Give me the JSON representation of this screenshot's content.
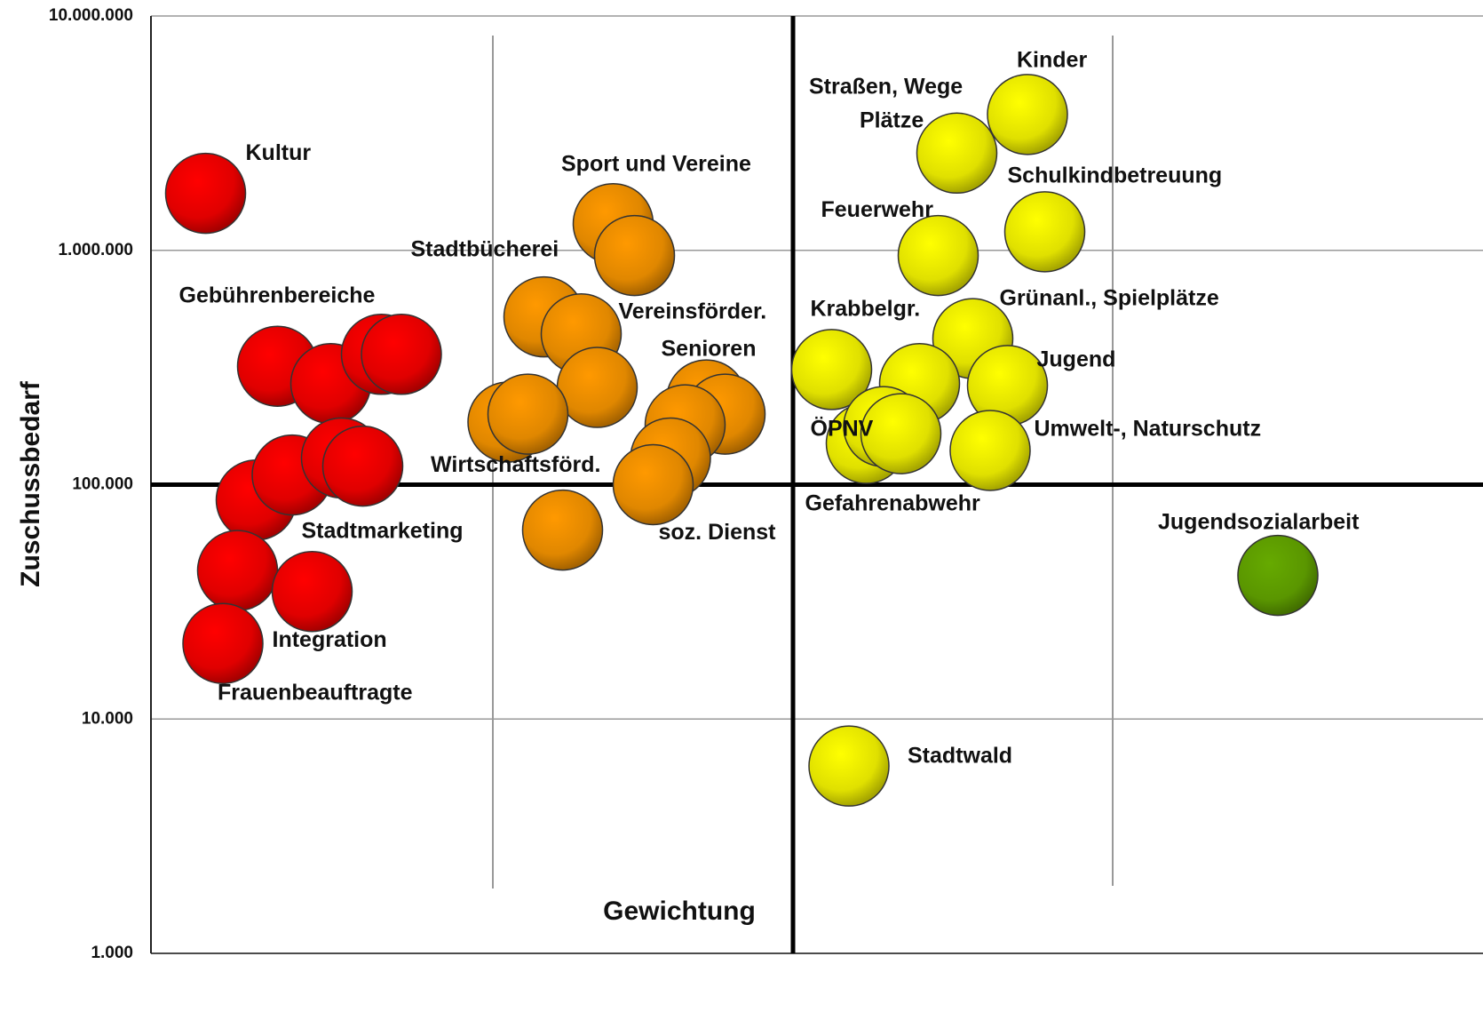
{
  "chart_data": {
    "type": "bubble",
    "x_label": "Gewichtung",
    "y_label": "Zuschussbedarf",
    "log_y": true,
    "grid": true,
    "xlim": [
      0,
      100
    ],
    "ylim": [
      1000,
      10000000
    ],
    "yticks": [
      {
        "value": 1000,
        "label": "1.000"
      },
      {
        "value": 10000,
        "label": "10.000"
      },
      {
        "value": 100000,
        "label": "100.000"
      },
      {
        "value": 1000000,
        "label": "1.000.000"
      },
      {
        "value": 10000000,
        "label": "10.000.000"
      }
    ],
    "crosshair": {
      "x": 48.2,
      "y": 100000
    },
    "series": [
      {
        "color": "#ff0000",
        "x": [
          4.1,
          9.5,
          13.5,
          17.3,
          18.8,
          7.9,
          10.6,
          14.3,
          15.9,
          6.5,
          12.1,
          5.4
        ],
        "values": [
          1750000,
          320000,
          270000,
          360000,
          360000,
          86000,
          110000,
          130000,
          120000,
          43000,
          35000,
          21000
        ]
      },
      {
        "color": "#ff9900",
        "x": [
          34.7,
          36.3,
          29.5,
          32.3,
          33.5,
          26.8,
          28.3,
          30.9,
          41.7,
          43.1,
          40.1,
          39.0,
          37.7
        ],
        "values": [
          1300000,
          950000,
          520000,
          440000,
          260000,
          185000,
          200000,
          64000,
          230000,
          200000,
          180000,
          130000,
          100000
        ]
      },
      {
        "color": "#ffff00",
        "x": [
          65.8,
          60.5,
          67.1,
          59.1,
          61.7,
          51.1,
          57.7,
          64.3,
          53.7,
          55.0,
          56.3,
          63.0,
          52.4
        ],
        "values": [
          3800000,
          2600000,
          1200000,
          950000,
          420000,
          310000,
          270000,
          265000,
          150000,
          177000,
          165000,
          140000,
          6300
        ]
      },
      {
        "color": "#66aa00",
        "x": [
          84.6
        ],
        "values": [
          41000
        ]
      }
    ],
    "annotations": [
      {
        "text": "Kultur",
        "x": 7.1,
        "y": 2580000
      },
      {
        "text": "Sport und Vereine",
        "x": 30.8,
        "y": 2310000
      },
      {
        "text": "Stadtbücherei",
        "x": 19.5,
        "y": 1000000
      },
      {
        "text": "Gebührenbereiche",
        "x": 2.1,
        "y": 634000
      },
      {
        "text": "Vereinsförder.",
        "x": 35.1,
        "y": 542000
      },
      {
        "text": "Senioren",
        "x": 38.3,
        "y": 375000
      },
      {
        "text": "Wirtschaftsförd.",
        "x": 21.0,
        "y": 120000
      },
      {
        "text": "Stadtmarketing",
        "x": 11.3,
        "y": 62700
      },
      {
        "text": "soz. Dienst",
        "x": 38.1,
        "y": 62000
      },
      {
        "text": "Integration",
        "x": 9.1,
        "y": 21500
      },
      {
        "text": "Frauenbeauftragte",
        "x": 5.0,
        "y": 12800
      },
      {
        "text": "Kinder",
        "x": 65.0,
        "y": 6410000
      },
      {
        "text": "Straßen, Wege",
        "x": 49.4,
        "y": 4930000
      },
      {
        "text": "Plätze",
        "x": 53.2,
        "y": 3540000
      },
      {
        "text": "Schulkindbetreuung",
        "x": 64.3,
        "y": 2060000
      },
      {
        "text": "Feuerwehr",
        "x": 50.3,
        "y": 1470000
      },
      {
        "text": "Grünanl., Spielplätze",
        "x": 63.7,
        "y": 618000
      },
      {
        "text": "Krabbelgr.",
        "x": 49.5,
        "y": 556000
      },
      {
        "text": "Jugend",
        "x": 66.5,
        "y": 338000
      },
      {
        "text": "ÖPNV",
        "x": 49.5,
        "y": 171000
      },
      {
        "text": "Umwelt-, Naturschutz",
        "x": 66.3,
        "y": 171000
      },
      {
        "text": "Gefahrenabwehr",
        "x": 49.1,
        "y": 82200
      },
      {
        "text": "Jugendsozialarbeit",
        "x": 75.6,
        "y": 68400
      },
      {
        "text": "Stadtwald",
        "x": 56.8,
        "y": 6890
      }
    ]
  }
}
